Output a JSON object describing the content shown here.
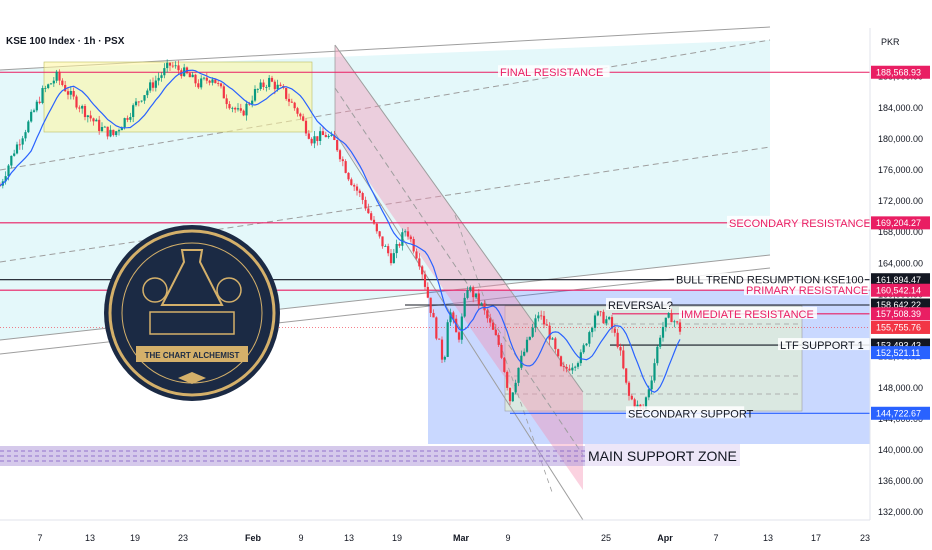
{
  "header": {
    "symbol_line": "KSE 100 Index · 1h · PSX",
    "currency": "PKR"
  },
  "logo": {
    "text": "THE CHART ALCHEMIST"
  },
  "colors": {
    "up": "#089981",
    "down": "#f23645",
    "resistance": "#e91e63",
    "support": "#2962ff",
    "black_line": "#131722",
    "ma": "#2962ff"
  },
  "chart_data": {
    "type": "candlestick",
    "x_ticks": [
      "7",
      "13",
      "19",
      "23",
      "Feb",
      "9",
      "13",
      "19",
      "Mar",
      "9",
      "25",
      "Apr",
      "7",
      "13",
      "17",
      "23"
    ],
    "y_ticks": [
      "188,000.00",
      "184,000.00",
      "180,000.00",
      "176,000.00",
      "172,000.00",
      "168,000.00",
      "164,000.00",
      "160,000.00",
      "156,000.00",
      "152,000.00",
      "148,000.00",
      "144,000.00",
      "140,000.00",
      "136,000.00",
      "132,000.00"
    ],
    "ylim": [
      131000,
      194000
    ],
    "price_labels": [
      {
        "value": 188568.93,
        "text": "188,568.93",
        "color": "#e91e63"
      },
      {
        "value": 169204.27,
        "text": "169,204.27",
        "color": "#e91e63"
      },
      {
        "value": 161894.47,
        "text": "161,894.47",
        "color": "#131722"
      },
      {
        "value": 160542.14,
        "text": "160,542.14",
        "color": "#e91e63"
      },
      {
        "value": 158642.22,
        "text": "158,642.22",
        "color": "#131722"
      },
      {
        "value": 157508.39,
        "text": "157,508.39",
        "color": "#e91e63"
      },
      {
        "value": 155755.76,
        "text": "155,755.76",
        "color": "#f23645"
      },
      {
        "value": 153493.43,
        "text": "153,493.43",
        "color": "#131722"
      },
      {
        "value": 152521.11,
        "text": "152,521.11",
        "color": "#2962ff"
      },
      {
        "value": 144722.67,
        "text": "144,722.67",
        "color": "#2962ff"
      }
    ],
    "levels": [
      {
        "value": 188568.93,
        "label": "FINAL RESISTANCE",
        "color": "#e91e63"
      },
      {
        "value": 169204.27,
        "label": "SECONDARY RESISTANCE",
        "color": "#e91e63"
      },
      {
        "value": 161894.47,
        "label": "BULL TREND RESUMPTION KSE100",
        "color": "#131722"
      },
      {
        "value": 160542.14,
        "label": "PRIMARY RESISTANCE",
        "color": "#e91e63"
      },
      {
        "value": 158642.22,
        "label": "REVERSAL?",
        "color": "#131722"
      },
      {
        "value": 157508.39,
        "label": "IMMEDIATE RESISTANCE",
        "color": "#e91e63"
      },
      {
        "value": 153493.43,
        "label": "LTF SUPPORT 1",
        "color": "#131722"
      },
      {
        "value": 144722.67,
        "label": "SECONDARY SUPPORT",
        "color": "#2962ff"
      }
    ],
    "zones": [
      {
        "label": "MAIN SUPPORT ZONE",
        "top": 140200,
        "bottom": 137700
      }
    ],
    "price_path": [
      [
        0,
        174000
      ],
      [
        6,
        178500
      ],
      [
        12,
        182000
      ],
      [
        18,
        186000
      ],
      [
        24,
        188000
      ],
      [
        30,
        185500
      ],
      [
        36,
        183500
      ],
      [
        42,
        181500
      ],
      [
        48,
        180500
      ],
      [
        54,
        183000
      ],
      [
        60,
        185500
      ],
      [
        66,
        187500
      ],
      [
        72,
        189500
      ],
      [
        78,
        188500
      ],
      [
        84,
        187000
      ],
      [
        90,
        188000
      ],
      [
        96,
        185000
      ],
      [
        102,
        183000
      ],
      [
        108,
        186000
      ],
      [
        114,
        187500
      ],
      [
        120,
        186000
      ],
      [
        126,
        183500
      ],
      [
        132,
        180000
      ],
      [
        138,
        180500
      ],
      [
        142,
        179500
      ],
      [
        148,
        175000
      ],
      [
        154,
        172000
      ],
      [
        160,
        167500
      ],
      [
        166,
        164500
      ],
      [
        172,
        168500
      ],
      [
        178,
        164000
      ],
      [
        184,
        156000
      ],
      [
        188,
        151000
      ],
      [
        190,
        158500
      ],
      [
        194,
        154000
      ],
      [
        198,
        161000
      ],
      [
        204,
        158500
      ],
      [
        212,
        153000
      ],
      [
        216,
        146500
      ],
      [
        220,
        151000
      ],
      [
        228,
        157500
      ],
      [
        232,
        155500
      ],
      [
        238,
        150000
      ],
      [
        246,
        152000
      ],
      [
        252,
        157500
      ],
      [
        258,
        156500
      ],
      [
        262,
        153500
      ],
      [
        266,
        147000
      ],
      [
        272,
        144800
      ],
      [
        276,
        149500
      ],
      [
        280,
        155500
      ],
      [
        284,
        157300
      ],
      [
        288,
        155500
      ]
    ],
    "path_x_range": [
      0,
      288
    ]
  }
}
